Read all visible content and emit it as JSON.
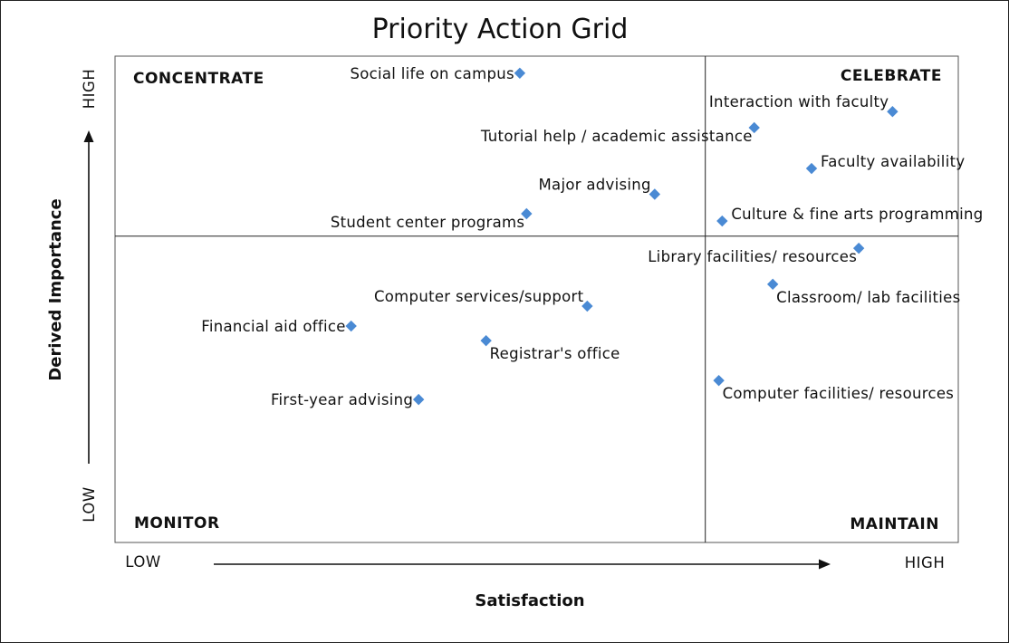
{
  "chart_data": {
    "type": "scatter",
    "title": "Priority Action Grid",
    "xlabel": "Satisfaction",
    "ylabel": "Derived Importance",
    "x_low_label": "LOW",
    "x_high_label": "HIGH",
    "y_low_label": "LOW",
    "y_high_label": "HIGH",
    "xlim": [
      0,
      100
    ],
    "ylim": [
      0,
      100
    ],
    "x_divider": 70,
    "y_divider": 63,
    "grid": false,
    "quadrants": {
      "top_left": "CONCENTRATE",
      "top_right": "CELEBRATE",
      "bottom_left": "MONITOR",
      "bottom_right": "MAINTAIN"
    },
    "marker_color": "#4a8ad4",
    "points": [
      {
        "label": "Social life on campus",
        "x": 48.0,
        "y": 96.5,
        "label_pos": "left"
      },
      {
        "label": "Interaction with faculty",
        "x": 92.2,
        "y": 88.6,
        "label_pos": "above-left"
      },
      {
        "label": "Tutorial help / academic assistance",
        "x": 75.8,
        "y": 85.3,
        "label_pos": "below-left"
      },
      {
        "label": "Faculty availability",
        "x": 82.6,
        "y": 76.9,
        "label_pos": "right"
      },
      {
        "label": "Major advising",
        "x": 64.0,
        "y": 71.6,
        "label_pos": "above-left"
      },
      {
        "label": "Student center programs",
        "x": 48.8,
        "y": 67.6,
        "label_pos": "below-left"
      },
      {
        "label": "Culture & fine arts programming",
        "x": 72.0,
        "y": 66.1,
        "label_pos": "right"
      },
      {
        "label": "Library facilities/ resources",
        "x": 88.2,
        "y": 60.5,
        "label_pos": "below-left"
      },
      {
        "label": "Classroom/ lab facilities",
        "x": 78.0,
        "y": 53.1,
        "label_pos": "below-right"
      },
      {
        "label": "Computer services/support",
        "x": 56.0,
        "y": 48.6,
        "label_pos": "above-left"
      },
      {
        "label": "Financial aid office",
        "x": 28.0,
        "y": 44.5,
        "label_pos": "left"
      },
      {
        "label": "Registrar's office",
        "x": 44.0,
        "y": 41.5,
        "label_pos": "below-right"
      },
      {
        "label": "Computer facilities/ resources",
        "x": 71.6,
        "y": 33.3,
        "label_pos": "below-right"
      },
      {
        "label": "First-year advising",
        "x": 36.0,
        "y": 29.4,
        "label_pos": "left"
      }
    ]
  }
}
